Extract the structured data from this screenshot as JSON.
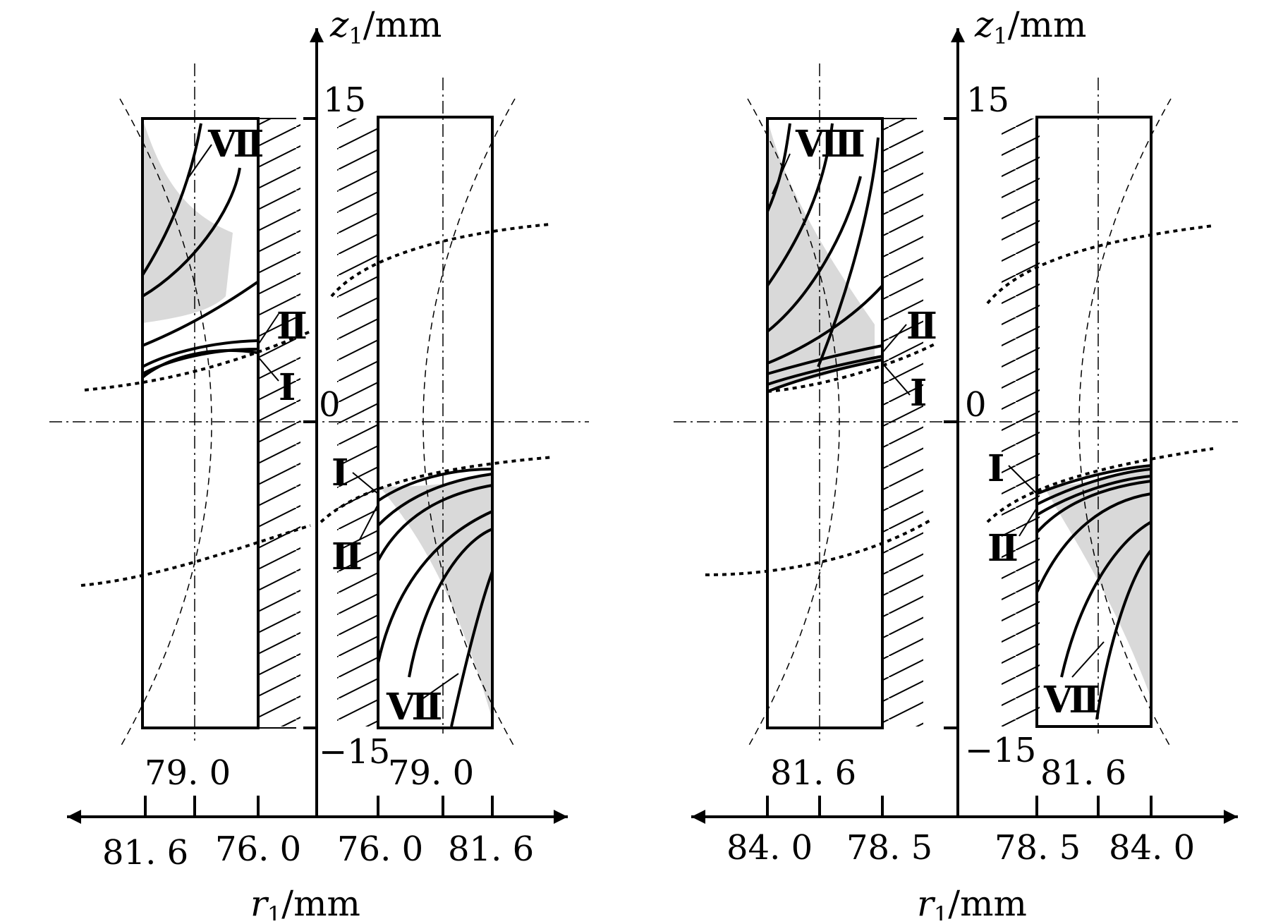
{
  "panels": [
    {
      "z_axis": {
        "var": "z",
        "sub": "1",
        "unit": "/mm",
        "tick_top": "15",
        "tick_zero": "0",
        "tick_bottom": "−15"
      },
      "r_axis": {
        "var": "r",
        "sub": "1",
        "unit": "/mm"
      },
      "r_ticks": {
        "left_outer": "81. 6",
        "left_inner": "76. 0",
        "right_inner": "76. 0",
        "right_outer": "81. 6"
      },
      "center_labels": {
        "left": "79. 0",
        "right": "79. 0"
      },
      "curve_labels": {
        "left_top": "Ⅶ",
        "left_mid": "Ⅱ",
        "left_low": "Ⅰ",
        "right_top": "Ⅰ",
        "right_mid": "Ⅱ",
        "right_bottom": "Ⅶ"
      }
    },
    {
      "z_axis": {
        "var": "z",
        "sub": "1",
        "unit": "/mm",
        "tick_top": "15",
        "tick_zero": "0",
        "tick_bottom": "−15"
      },
      "r_axis": {
        "var": "r",
        "sub": "1",
        "unit": "/mm"
      },
      "r_ticks": {
        "left_outer": "84. 0",
        "left_inner": "78. 5",
        "right_inner": "78. 5",
        "right_outer": "84. 0"
      },
      "center_labels": {
        "left": "81. 6",
        "right": "81. 6"
      },
      "curve_labels": {
        "left_top": "Ⅷ",
        "left_mid": "Ⅱ",
        "left_low": "Ⅰ",
        "right_top": "Ⅰ",
        "right_mid": "Ⅱ",
        "right_bottom": "Ⅶ"
      }
    }
  ],
  "colors": {
    "line": "#000000",
    "shade": "#d9d9d9"
  }
}
